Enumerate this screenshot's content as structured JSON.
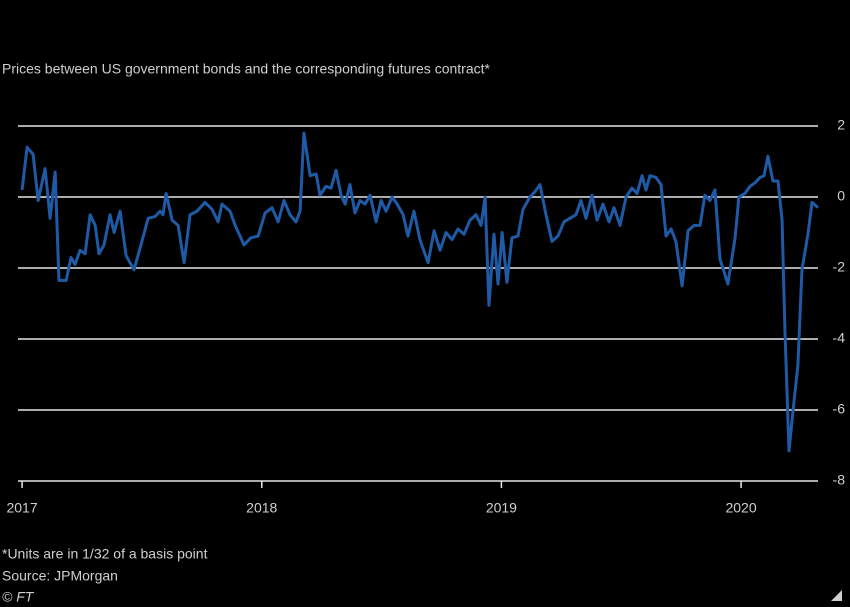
{
  "chart_data": {
    "type": "line",
    "subtitle": "Prices between US government bonds and the corresponding futures contract*",
    "footnote": "*Units are in 1/32 of a basis point",
    "source": "Source: JPMorgan",
    "credit": "© FT",
    "color": "#1f5aa6",
    "grid": true,
    "x": [
      2017.0,
      2017.021,
      2017.046,
      2017.067,
      2017.096,
      2017.117,
      2017.138,
      2017.154,
      2017.184,
      2017.204,
      2017.221,
      2017.242,
      2017.263,
      2017.284,
      2017.305,
      2017.321,
      2017.342,
      2017.367,
      2017.384,
      2017.409,
      2017.434,
      2017.467,
      2017.496,
      2017.526,
      2017.555,
      2017.576,
      2017.588,
      2017.601,
      2017.626,
      2017.651,
      2017.676,
      2017.701,
      2017.73,
      2017.763,
      2017.793,
      2017.818,
      2017.834,
      2017.868,
      2017.889,
      2017.926,
      2017.955,
      2017.985,
      2018.014,
      2018.043,
      2018.068,
      2018.093,
      2018.118,
      2018.143,
      2018.16,
      2018.176,
      2018.202,
      2018.227,
      2018.243,
      2018.268,
      2018.289,
      2018.31,
      2018.331,
      2018.348,
      2018.368,
      2018.389,
      2018.41,
      2018.431,
      2018.452,
      2018.477,
      2018.498,
      2018.519,
      2018.544,
      2018.565,
      2018.59,
      2018.61,
      2018.635,
      2018.66,
      2018.694,
      2018.719,
      2018.744,
      2018.769,
      2018.794,
      2018.819,
      2018.844,
      2018.869,
      2018.894,
      2018.915,
      2018.932,
      2018.948,
      2018.969,
      2018.986,
      2019.003,
      2019.023,
      2019.044,
      2019.069,
      2019.09,
      2019.119,
      2019.14,
      2019.161,
      2019.186,
      2019.211,
      2019.236,
      2019.261,
      2019.286,
      2019.311,
      2019.332,
      2019.353,
      2019.378,
      2019.399,
      2019.424,
      2019.449,
      2019.47,
      2019.495,
      2019.52,
      2019.545,
      2019.566,
      2019.587,
      2019.603,
      2019.62,
      2019.645,
      2019.666,
      2019.687,
      2019.708,
      2019.728,
      2019.754,
      2019.779,
      2019.804,
      2019.829,
      2019.849,
      2019.87,
      2019.891,
      2019.912,
      2019.945,
      2019.975,
      2019.991,
      2020.016,
      2020.037,
      2020.058,
      2020.079,
      2020.096,
      2020.112,
      2020.133,
      2020.154,
      2020.171,
      2020.183,
      2020.2,
      2020.217,
      2020.237,
      2020.254,
      2020.279,
      2020.296,
      2020.321
    ],
    "values": [
      0.2,
      1.4,
      1.2,
      -0.1,
      0.8,
      -0.6,
      0.7,
      -2.35,
      -2.35,
      -1.7,
      -1.9,
      -1.5,
      -1.6,
      -0.5,
      -0.8,
      -1.6,
      -1.35,
      -0.5,
      -1.0,
      -0.4,
      -1.65,
      -2.05,
      -1.35,
      -0.6,
      -0.55,
      -0.4,
      -0.5,
      0.1,
      -0.65,
      -0.8,
      -1.85,
      -0.5,
      -0.4,
      -0.15,
      -0.35,
      -0.7,
      -0.2,
      -0.4,
      -0.8,
      -1.35,
      -1.15,
      -1.1,
      -0.45,
      -0.3,
      -0.7,
      -0.1,
      -0.5,
      -0.7,
      -0.4,
      1.8,
      0.6,
      0.65,
      0.05,
      0.3,
      0.25,
      0.75,
      0.05,
      -0.2,
      0.35,
      -0.45,
      -0.1,
      -0.2,
      0.05,
      -0.7,
      -0.1,
      -0.4,
      0,
      -0.2,
      -0.5,
      -1.1,
      -0.4,
      -1.2,
      -1.85,
      -0.95,
      -1.5,
      -1.0,
      -1.2,
      -0.9,
      -1.05,
      -0.65,
      -0.5,
      -0.8,
      0,
      -3.05,
      -1.05,
      -2.45,
      -1.0,
      -2.4,
      -1.15,
      -1.1,
      -0.35,
      0,
      0.15,
      0.35,
      -0.5,
      -1.25,
      -1.1,
      -0.7,
      -0.6,
      -0.5,
      -0.1,
      -0.6,
      0.05,
      -0.65,
      -0.2,
      -0.7,
      -0.3,
      -0.8,
      0,
      0.25,
      0.1,
      0.6,
      0.2,
      0.6,
      0.55,
      0.35,
      -1.1,
      -0.9,
      -1.25,
      -2.5,
      -0.95,
      -0.8,
      -0.8,
      0.05,
      -0.1,
      0.2,
      -1.75,
      -2.45,
      -1.15,
      0,
      0.1,
      0.3,
      0.4,
      0.55,
      0.6,
      1.15,
      0.45,
      0.45,
      -0.65,
      -3.75,
      -7.15,
      -6.0,
      -4.75,
      -2.05,
      -1.05,
      -0.15,
      -0.3
    ],
    "xlim": [
      2016.983,
      2020.321
    ],
    "xticks": [
      2017,
      2018,
      2019,
      2020
    ],
    "ylim": [
      -8,
      2.3
    ],
    "yticks": [
      2,
      0,
      -2,
      -4,
      -6,
      -8
    ]
  }
}
